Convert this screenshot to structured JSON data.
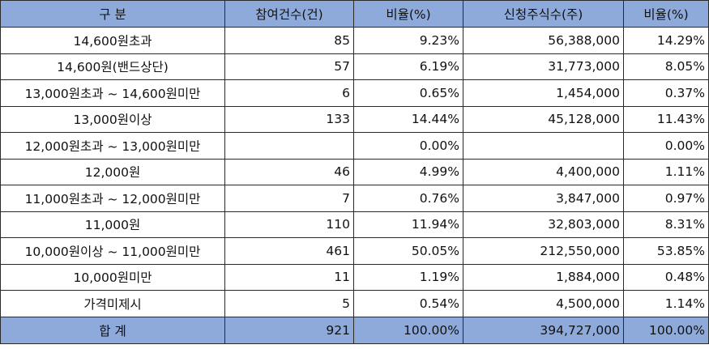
{
  "headers": [
    "구  분",
    "참여건수(건)",
    "비율(%)",
    "신청주식수(주)",
    "비율(%)"
  ],
  "rows": [
    {
      "label": "14,600원초과",
      "count": "85",
      "count_ratio": "9.23%",
      "shares": "56,388,000",
      "shares_ratio": "14.29%"
    },
    {
      "label": "14,600원(밴드상단)",
      "count": "57",
      "count_ratio": "6.19%",
      "shares": "31,773,000",
      "shares_ratio": "8.05%"
    },
    {
      "label": "13,000원초과 ~ 14,600원미만",
      "count": "6",
      "count_ratio": "0.65%",
      "shares": "1,454,000",
      "shares_ratio": "0.37%"
    },
    {
      "label": "13,000원이상",
      "count": "133",
      "count_ratio": "14.44%",
      "shares": "45,128,000",
      "shares_ratio": "11.43%"
    },
    {
      "label": "12,000원초과 ~ 13,000원미만",
      "count": "",
      "count_ratio": "0.00%",
      "shares": "",
      "shares_ratio": "0.00%"
    },
    {
      "label": "12,000원",
      "count": "46",
      "count_ratio": "4.99%",
      "shares": "4,400,000",
      "shares_ratio": "1.11%"
    },
    {
      "label": "11,000원초과 ~ 12,000원미만",
      "count": "7",
      "count_ratio": "0.76%",
      "shares": "3,847,000",
      "shares_ratio": "0.97%"
    },
    {
      "label": "11,000원",
      "count": "110",
      "count_ratio": "11.94%",
      "shares": "32,803,000",
      "shares_ratio": "8.31%"
    },
    {
      "label": "10,000원이상 ~ 11,000원미만",
      "count": "461",
      "count_ratio": "50.05%",
      "shares": "212,550,000",
      "shares_ratio": "53.85%"
    },
    {
      "label": "10,000원미만",
      "count": "11",
      "count_ratio": "1.19%",
      "shares": "1,884,000",
      "shares_ratio": "0.48%"
    },
    {
      "label": "가격미제시",
      "count": "5",
      "count_ratio": "0.54%",
      "shares": "4,500,000",
      "shares_ratio": "1.14%"
    }
  ],
  "total": {
    "label": "합  계",
    "count": "921",
    "count_ratio": "100.00%",
    "shares": "394,727,000",
    "shares_ratio": "100.00%"
  },
  "colors": {
    "header_bg": "#8eaadb",
    "border": "#2a2a2a",
    "text": "#111111"
  }
}
